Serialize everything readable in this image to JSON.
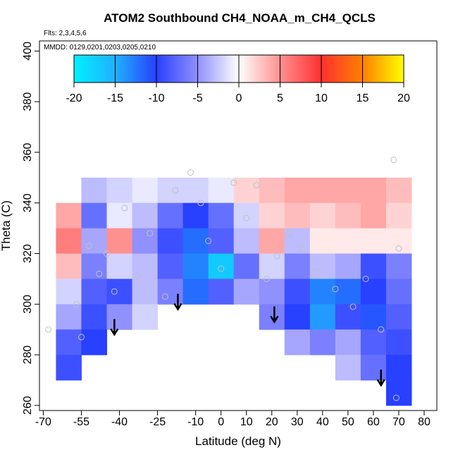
{
  "chart_data": {
    "type": "heatmap",
    "title": "ATOM2 Southbound CH4_NOAA_m_CH4_QCLS",
    "subtitle": "Flts: 2,3,4,5,6",
    "annotation": "MMDD: 0129,0201,0203,0205,0210",
    "x_label": "Latitude (deg N)",
    "y_label": "Theta (C)",
    "xlim": [
      -71.5,
      85
    ],
    "ylim": [
      258,
      404
    ],
    "xticks": [
      -70,
      -55,
      -40,
      -25,
      -10,
      0,
      10,
      20,
      30,
      40,
      50,
      60,
      70,
      80
    ],
    "yticks": [
      260,
      280,
      300,
      320,
      340,
      360,
      380,
      400
    ],
    "x_edges": [
      -65,
      -55,
      -45,
      -35,
      -25,
      -15,
      -5,
      5,
      15,
      25,
      35,
      45,
      55,
      65,
      75
    ],
    "y_edges": [
      350,
      340,
      330,
      320,
      310,
      300,
      290,
      280,
      270,
      260
    ],
    "values": [
      [
        null,
        -3,
        -2,
        -1,
        -2,
        -2,
        -1,
        2,
        3,
        4,
        4,
        4,
        4,
        3
      ],
      [
        4,
        -7,
        -1,
        -3,
        -7,
        -10,
        -7,
        -2,
        2,
        3,
        2,
        3,
        4,
        2
      ],
      [
        6,
        -4,
        5,
        -5,
        -9,
        -12,
        -8,
        -3,
        4,
        -3,
        1,
        1,
        1,
        1
      ],
      [
        3,
        -6,
        -2,
        -3,
        -8,
        -13,
        -17,
        -7,
        -2,
        -6,
        -3,
        -4,
        -9,
        -6
      ],
      [
        -2,
        -8,
        -9,
        -3,
        -6,
        -12,
        -8,
        -4,
        -5,
        -9,
        -13,
        -12,
        -10,
        -7
      ],
      [
        -4,
        -9,
        -5,
        -2,
        null,
        null,
        null,
        null,
        -6,
        -10,
        -14,
        -9,
        -11,
        -8
      ],
      [
        -8,
        -10,
        null,
        null,
        null,
        null,
        null,
        null,
        null,
        -4,
        -6,
        -4,
        -8,
        -9
      ],
      [
        -9,
        null,
        null,
        null,
        null,
        null,
        null,
        null,
        null,
        null,
        null,
        -3,
        -7,
        -10
      ],
      [
        null,
        null,
        null,
        null,
        null,
        null,
        null,
        null,
        null,
        null,
        null,
        null,
        null,
        -10
      ]
    ],
    "clim": [
      -20,
      20
    ],
    "cticks": [
      -20,
      -15,
      -10,
      -5,
      0,
      5,
      10,
      15,
      20
    ],
    "colors": [
      "#00f0ff",
      "#20b0ff",
      "#2840ff",
      "#9090ff",
      "#ffffff",
      "#ff9090",
      "#ff3030",
      "#ff8000",
      "#ffff00"
    ],
    "obs_x": [
      -68,
      -57,
      -55,
      -52,
      -48,
      -45,
      -42,
      -38,
      -33,
      -28,
      -22,
      -18,
      -12,
      -8,
      -5,
      0,
      5,
      10,
      14,
      18,
      22,
      27,
      32,
      38,
      45,
      52,
      57,
      63,
      68,
      70,
      69
    ],
    "obs_y": [
      290,
      300,
      287,
      323,
      312,
      320,
      305,
      338,
      311,
      328,
      303,
      345,
      352,
      340,
      325,
      314,
      348,
      334,
      347,
      310,
      319,
      328,
      322,
      313,
      306,
      299,
      310,
      290,
      357,
      322,
      263
    ],
    "obs_color": "#c0c0c0",
    "arrows_x": [
      -42,
      -17,
      21,
      63
    ],
    "arrows_y": [
      288,
      298,
      293,
      268
    ]
  }
}
